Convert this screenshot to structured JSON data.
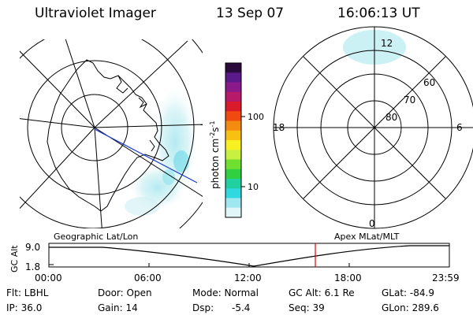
{
  "header": {
    "instrument": "Ultraviolet Imager",
    "date": "13 Sep 07",
    "time": "16:06:13 UT"
  },
  "colorbar": {
    "unit_label": "photon cm",
    "unit_sup1": "-2",
    "unit_mid": "s",
    "unit_sup2": "-1",
    "tick_100": "100",
    "tick_10": "10",
    "colors": [
      "#2a0a3a",
      "#5a1a8a",
      "#8a1a8a",
      "#b81a6a",
      "#d81a2a",
      "#f04a10",
      "#f48a10",
      "#f8c010",
      "#f8f020",
      "#c8f040",
      "#70e030",
      "#30d040",
      "#20d0a0",
      "#30d8e0",
      "#a0e8f0",
      "#e0f6f8"
    ]
  },
  "polar_plot": {
    "label_12": "12",
    "label_6": "6",
    "label_18": "18",
    "label_0": "0",
    "lat_60": "60",
    "lat_70": "70",
    "lat_80": "80"
  },
  "timeline": {
    "ylabel": "GC Alt",
    "ytick_top": "9.0",
    "ytick_bottom": "1.8",
    "left_title": "Geographic Lat/Lon",
    "right_title": "Apex MLat/MLT",
    "xticks": [
      "00:00",
      "06:00",
      "12:00",
      "18:00",
      "23:59"
    ],
    "marker_color": "#e00000"
  },
  "info": {
    "flt": "Flt: LBHL",
    "ip": "IP: 36.0",
    "door": "Door: Open",
    "gain": "Gain: 14",
    "mode": "Mode: Normal",
    "dsp_label": "Dsp:",
    "dsp_value": "-5.4",
    "gcalt": "GC Alt: 6.1 Re",
    "seq": "Seq: 39",
    "glat": "GLat: -84.9",
    "glon": "GLon: 289.6"
  }
}
